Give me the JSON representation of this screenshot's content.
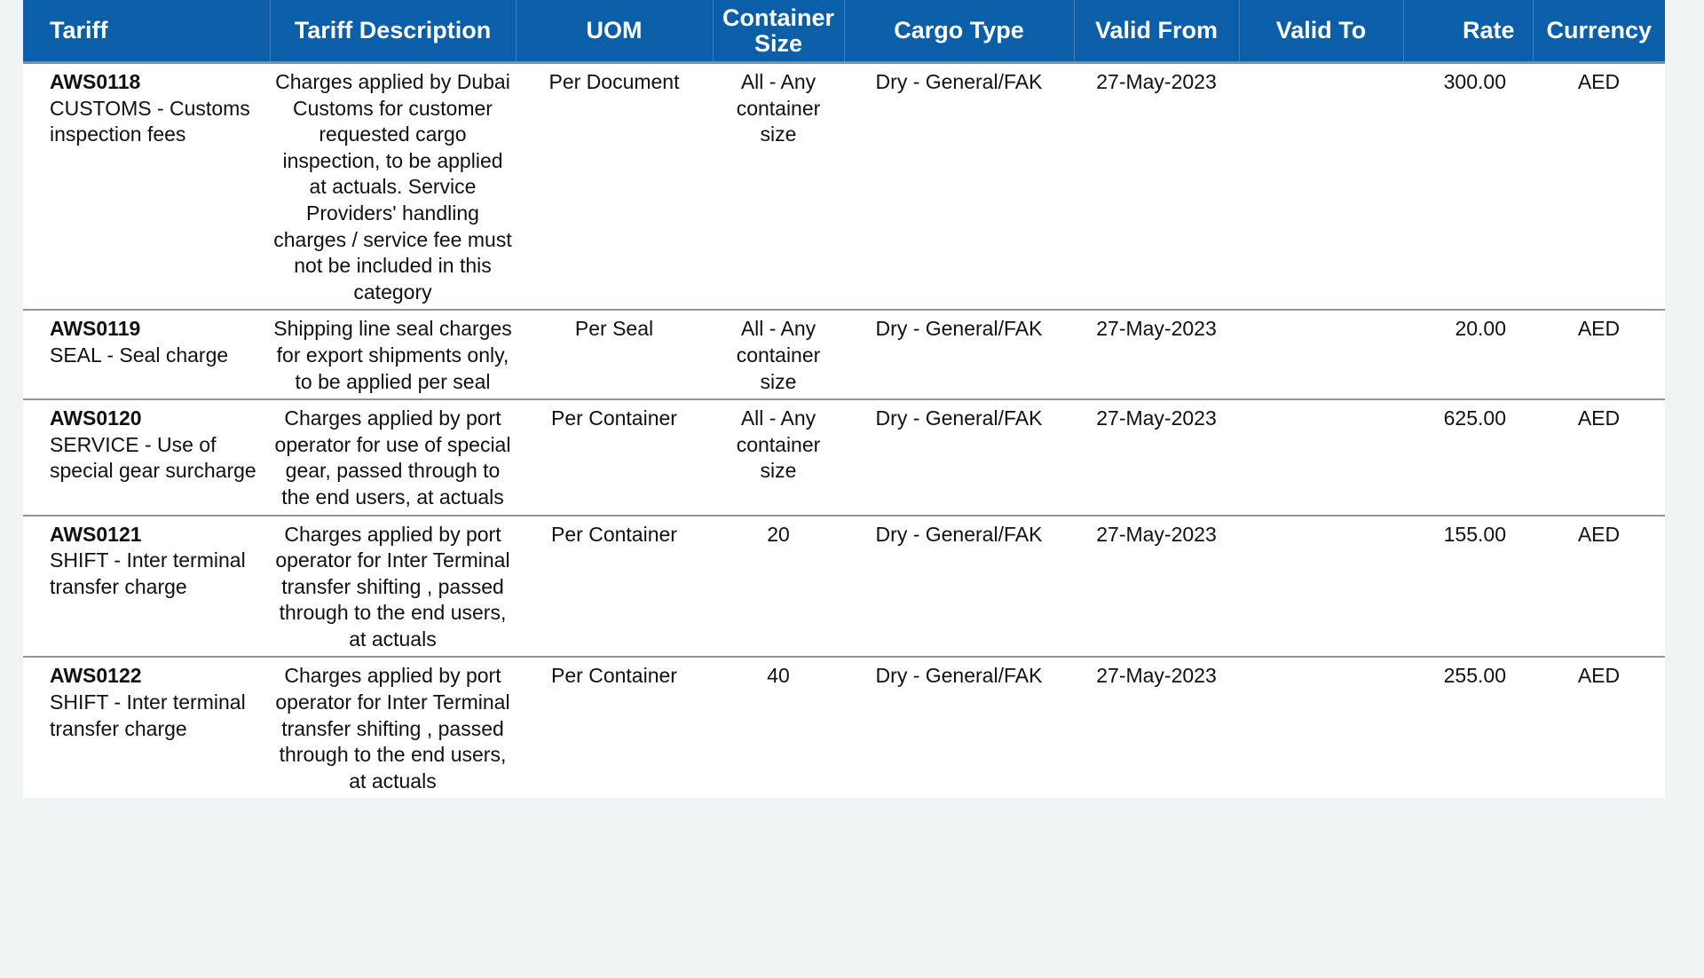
{
  "table": {
    "columns": [
      "Tariff",
      "Tariff Description",
      "UOM",
      "Container Size",
      "Cargo Type",
      "Valid From",
      "Valid To",
      "Rate",
      "Currency"
    ],
    "rows": [
      {
        "code": "AWS0118",
        "name": "CUSTOMS - Customs inspection fees",
        "description": "Charges applied by Dubai Customs for customer requested cargo inspection, to be applied at actuals. Service Providers' handling charges / service fee must not be included in this category",
        "uom": "Per Document",
        "container_size": "All - Any container size",
        "cargo_type": "Dry - General/FAK",
        "valid_from": "27-May-2023",
        "rate": "300.00",
        "currency": "AED"
      },
      {
        "code": "AWS0119",
        "name": "SEAL - Seal charge",
        "description": "Shipping line seal charges for export shipments only, to be applied per seal",
        "uom": "Per Seal",
        "container_size": "All - Any container size",
        "cargo_type": "Dry - General/FAK",
        "valid_from": "27-May-2023",
        "rate": "20.00",
        "currency": "AED"
      },
      {
        "code": "AWS0120",
        "name": "SERVICE - Use of special gear surcharge",
        "description": "Charges applied by port operator for use of special gear, passed through to the end users, at actuals",
        "uom": "Per Container",
        "container_size": "All - Any container size",
        "cargo_type": "Dry - General/FAK",
        "valid_from": "27-May-2023",
        "rate": "625.00",
        "currency": "AED"
      },
      {
        "code": "AWS0121",
        "name": "SHIFT - Inter terminal transfer charge",
        "description": "Charges applied by port operator for Inter Terminal transfer shifting , passed through to the end users, at actuals",
        "uom": "Per Container",
        "container_size": "20",
        "cargo_type": "Dry - General/FAK",
        "valid_from": "27-May-2023",
        "rate": "155.00",
        "currency": "AED"
      },
      {
        "code": "AWS0122",
        "name": "SHIFT - Inter terminal transfer charge",
        "description": "Charges applied by port operator for Inter Terminal transfer shifting , passed through to the end users, at actuals",
        "uom": "Per Container",
        "container_size": "40",
        "cargo_type": "Dry - General/FAK",
        "valid_from": "27-May-2023",
        "rate": "255.00",
        "currency": "AED"
      }
    ]
  }
}
